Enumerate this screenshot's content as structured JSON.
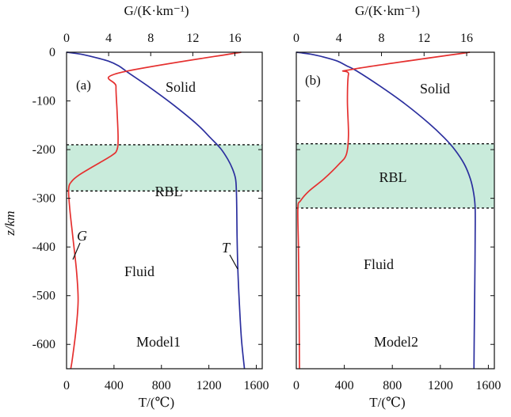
{
  "chart_data": {
    "type": "line",
    "shared": {
      "ylabel": "z/km",
      "top_axis_label": "G/(K·km⁻¹)",
      "bottom_axis_label": "T/(℃)",
      "ylim": [
        -650,
        0
      ],
      "y_ticks": [
        0,
        -100,
        -200,
        -300,
        -400,
        -500,
        -600
      ],
      "y_tick_labels": [
        "0",
        "-100",
        "-200",
        "-300",
        "-400",
        "-500",
        "-600"
      ],
      "temperature_xlim": [
        0,
        1650
      ],
      "temperature_ticks": [
        0,
        400,
        800,
        1200,
        1600
      ],
      "temperature_tick_labels": [
        "0",
        "400",
        "800",
        "1200",
        "1600"
      ],
      "gradient_xlim": [
        0,
        18.6
      ],
      "gradient_ticks": [
        0,
        4,
        8,
        12,
        16
      ],
      "gradient_tick_labels": [
        "0",
        "4",
        "8",
        "12",
        "16"
      ],
      "colors": {
        "temperature": "#2b2f9e",
        "gradient": "#e5302f",
        "rbl_fill": "#c9ebdb",
        "dash": "#111111",
        "frame": "#111111"
      }
    },
    "panels": [
      {
        "label": "(a)",
        "model_label": "Model1",
        "solid_label": "Solid",
        "rbl_label": "RBL",
        "fluid_label": "Fluid",
        "rbl_top": -190,
        "rbl_bottom": -285,
        "series": [
          {
            "name": "T",
            "axis": "temperature",
            "points": [
              [
                0,
                0
              ],
              [
                120,
                -4
              ],
              [
                230,
                -10
              ],
              [
                350,
                -18
              ],
              [
                440,
                -28
              ],
              [
                520,
                -42
              ],
              [
                700,
                -72
              ],
              [
                900,
                -108
              ],
              [
                1100,
                -148
              ],
              [
                1210,
                -175
              ],
              [
                1300,
                -198
              ],
              [
                1360,
                -220
              ],
              [
                1400,
                -240
              ],
              [
                1425,
                -260
              ],
              [
                1432,
                -285
              ],
              [
                1435,
                -320
              ],
              [
                1438,
                -380
              ],
              [
                1445,
                -450
              ],
              [
                1458,
                -520
              ],
              [
                1475,
                -590
              ],
              [
                1500,
                -650
              ]
            ]
          },
          {
            "name": "G",
            "axis": "gradient",
            "points": [
              [
                16.6,
                0
              ],
              [
                4.9,
                -43
              ],
              [
                4.7,
                -70
              ],
              [
                4.8,
                -120
              ],
              [
                4.9,
                -175
              ],
              [
                4.8,
                -200
              ],
              [
                4.3,
                -212
              ],
              [
                2.5,
                -235
              ],
              [
                1.2,
                -252
              ],
              [
                0.5,
                -265
              ],
              [
                0.2,
                -280
              ],
              [
                0.3,
                -320
              ],
              [
                0.6,
                -380
              ],
              [
                0.95,
                -450
              ],
              [
                1.1,
                -510
              ],
              [
                0.9,
                -570
              ],
              [
                0.55,
                -630
              ],
              [
                0.4,
                -650
              ]
            ]
          }
        ],
        "annotations": [
          {
            "text": "G",
            "series": "G"
          },
          {
            "text": "T",
            "series": "T"
          }
        ]
      },
      {
        "label": "(b)",
        "model_label": "Model2",
        "solid_label": "Solid",
        "rbl_label": "RBL",
        "fluid_label": "Fluid",
        "rbl_top": -188,
        "rbl_bottom": -320,
        "series": [
          {
            "name": "T",
            "axis": "temperature",
            "points": [
              [
                0,
                0
              ],
              [
                120,
                -4
              ],
              [
                230,
                -10
              ],
              [
                340,
                -18
              ],
              [
                420,
                -28
              ],
              [
                500,
                -38
              ],
              [
                700,
                -70
              ],
              [
                900,
                -105
              ],
              [
                1100,
                -145
              ],
              [
                1230,
                -175
              ],
              [
                1320,
                -200
              ],
              [
                1400,
                -230
              ],
              [
                1450,
                -260
              ],
              [
                1478,
                -290
              ],
              [
                1490,
                -320
              ],
              [
                1490,
                -380
              ],
              [
                1488,
                -450
              ],
              [
                1485,
                -520
              ],
              [
                1482,
                -590
              ],
              [
                1480,
                -650
              ]
            ]
          },
          {
            "name": "G",
            "axis": "gradient",
            "points": [
              [
                16.3,
                0
              ],
              [
                5.3,
                -35
              ],
              [
                4.9,
                -45
              ],
              [
                4.8,
                -100
              ],
              [
                4.9,
                -170
              ],
              [
                4.7,
                -210
              ],
              [
                4.0,
                -230
              ],
              [
                2.6,
                -260
              ],
              [
                1.2,
                -285
              ],
              [
                0.4,
                -305
              ],
              [
                0.15,
                -320
              ],
              [
                0.2,
                -400
              ],
              [
                0.25,
                -500
              ],
              [
                0.3,
                -650
              ]
            ]
          }
        ]
      }
    ]
  }
}
